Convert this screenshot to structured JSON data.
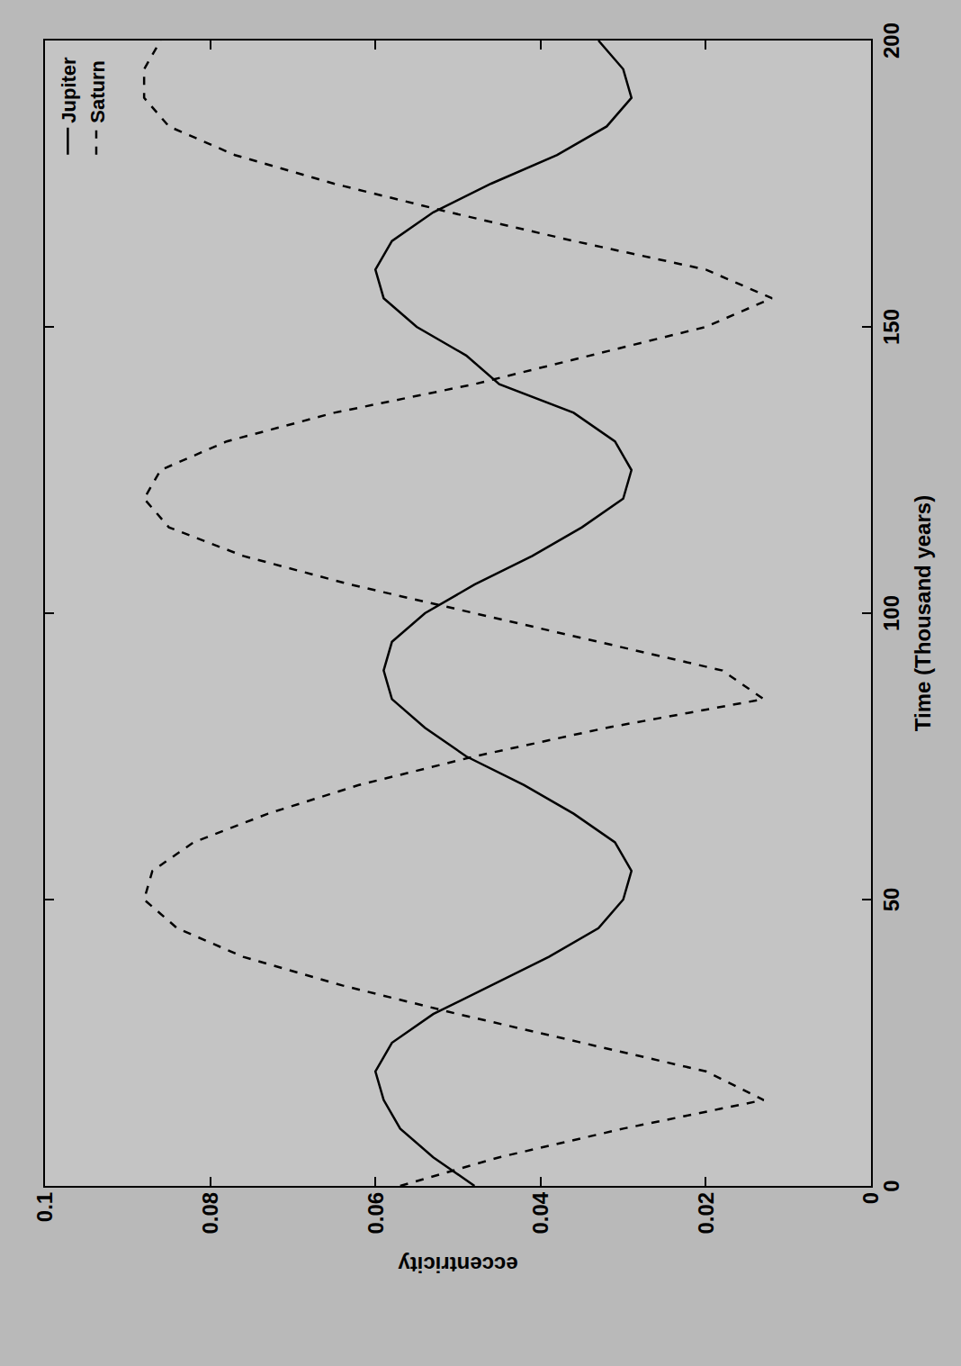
{
  "chart_data": {
    "type": "line",
    "x_label": "Time (Thousand years)",
    "y_label": "eccentricity",
    "x": [
      0,
      5,
      10,
      15,
      20,
      25,
      30,
      35,
      40,
      45,
      50,
      55,
      60,
      65,
      70,
      75,
      80,
      85,
      90,
      95,
      100,
      105,
      110,
      115,
      120,
      125,
      130,
      135,
      140,
      145,
      150,
      155,
      160,
      165,
      170,
      175,
      180,
      185,
      190,
      195,
      200
    ],
    "series": [
      {
        "name": "Jupiter",
        "color": "#000000",
        "line_style": "solid",
        "values": [
          0.048,
          0.053,
          0.057,
          0.059,
          0.06,
          0.058,
          0.053,
          0.046,
          0.039,
          0.033,
          0.03,
          0.029,
          0.031,
          0.036,
          0.042,
          0.049,
          0.054,
          0.058,
          0.059,
          0.058,
          0.054,
          0.048,
          0.041,
          0.035,
          0.03,
          0.029,
          0.031,
          0.036,
          0.045,
          0.049,
          0.055,
          0.059,
          0.06,
          0.058,
          0.053,
          0.046,
          0.038,
          0.032,
          0.029,
          0.03,
          0.033
        ]
      },
      {
        "name": "Saturn",
        "color": "#000000",
        "line_style": "dash",
        "values": [
          0.057,
          0.045,
          0.03,
          0.013,
          0.02,
          0.035,
          0.05,
          0.064,
          0.076,
          0.084,
          0.088,
          0.087,
          0.082,
          0.073,
          0.062,
          0.048,
          0.032,
          0.013,
          0.018,
          0.033,
          0.048,
          0.063,
          0.076,
          0.085,
          0.088,
          0.086,
          0.078,
          0.065,
          0.048,
          0.034,
          0.02,
          0.012,
          0.02,
          0.036,
          0.051,
          0.065,
          0.077,
          0.085,
          0.088,
          0.088,
          0.086
        ]
      }
    ],
    "xlim": [
      0,
      200
    ],
    "xticks": [
      0,
      50,
      100,
      150,
      200
    ],
    "ylim": [
      0,
      0.1
    ],
    "yticks": [
      0,
      0.02,
      0.04,
      0.06,
      0.08,
      0.1
    ],
    "grid": false,
    "legend": "top right"
  }
}
